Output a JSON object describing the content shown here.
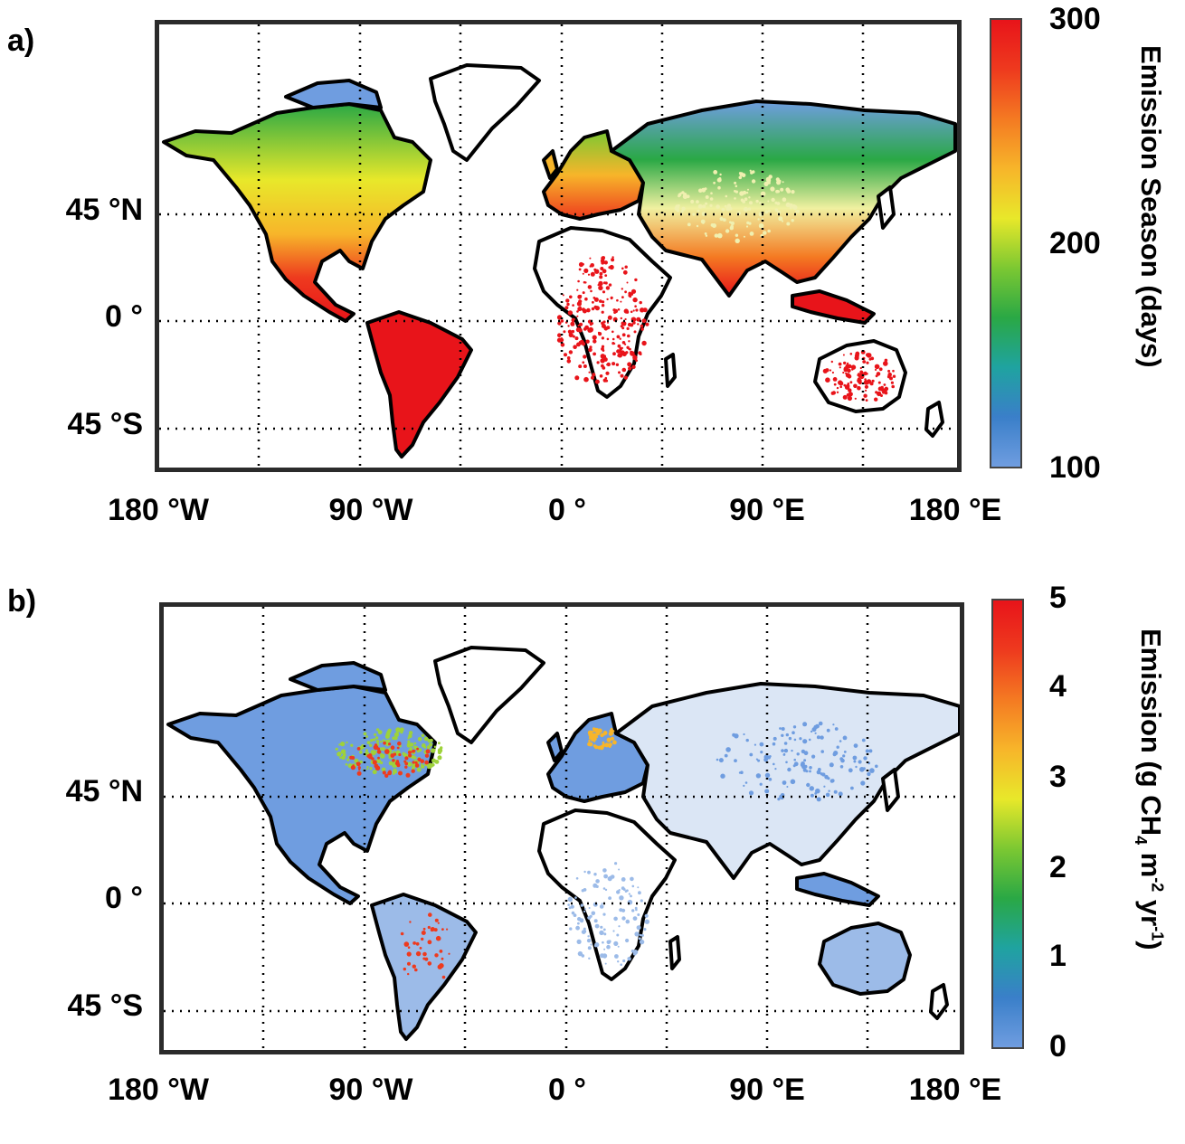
{
  "panels": [
    {
      "letter": "a)",
      "lat_labels": [
        "45 °N",
        "0 °",
        "45 °S"
      ],
      "lon_labels": [
        "180 °W",
        "90 °W",
        "0 °",
        "90 °E",
        "180 °E"
      ],
      "colorbar": {
        "ticks": [
          "300",
          "200",
          "100"
        ],
        "min": 100,
        "max": 300,
        "title": "Emission Season (days)"
      }
    },
    {
      "letter": "b)",
      "lat_labels": [
        "45 °N",
        "0 °",
        "45 °S"
      ],
      "lon_labels": [
        "180 °W",
        "90 °W",
        "0 °",
        "90 °E",
        "180 °E"
      ],
      "colorbar": {
        "ticks": [
          "5",
          "4",
          "3",
          "2",
          "1",
          "0"
        ],
        "min": 0,
        "max": 5,
        "title_main": "Emission (g CH",
        "title_sub": "4",
        "title_mid": " m",
        "title_sup1": "-2",
        "title_mid2": " yr",
        "title_sup2": "-1",
        "title_end": ")"
      }
    }
  ],
  "colormap": [
    "#6f9de0",
    "#3a7fc9",
    "#1fa3a0",
    "#2aa845",
    "#7cc832",
    "#e8e82a",
    "#f7b52a",
    "#f47a22",
    "#ee3a1e",
    "#e8141a"
  ]
}
